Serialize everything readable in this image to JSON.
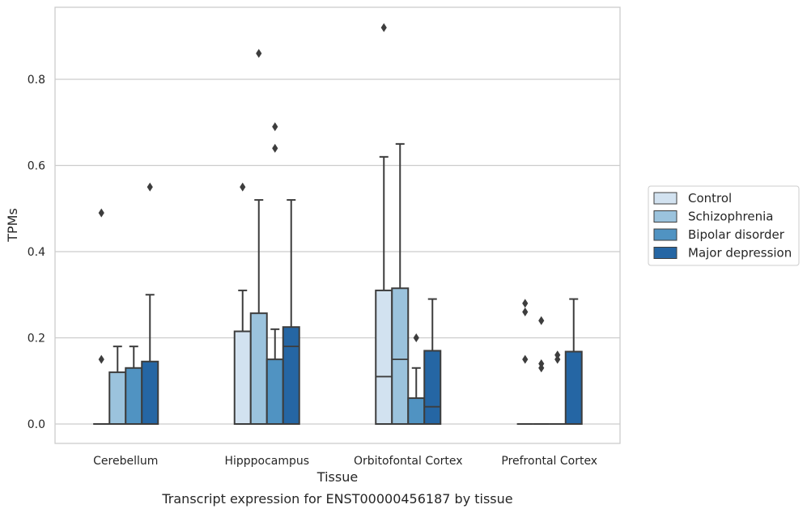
{
  "chart_data": {
    "type": "box",
    "xlabel": "Tissue",
    "ylabel": "TPMs",
    "caption": "Transcript expression for ENST00000456187 by tissue",
    "ylim": [
      -0.045,
      0.97
    ],
    "yticks": [
      0.0,
      0.2,
      0.4,
      0.6,
      0.8
    ],
    "ytick_labels": [
      "0.0",
      "0.2",
      "0.4",
      "0.6",
      "0.8"
    ],
    "grid": "horizontal",
    "legend_position": "right",
    "categories": [
      "Cerebellum",
      "Hipppocampus",
      "Orbitofontal Cortex",
      "Prefrontal Cortex"
    ],
    "series": [
      {
        "name": "Control",
        "color": "#d2e2f0",
        "boxes": [
          {
            "q1": 0,
            "median": 0,
            "q3": 0,
            "whisker_low": 0,
            "whisker_high": 0,
            "outliers": [
              0.15,
              0.49
            ]
          },
          {
            "q1": 0,
            "median": 0,
            "q3": 0.215,
            "whisker_low": 0,
            "whisker_high": 0.31,
            "outliers": [
              0.55
            ]
          },
          {
            "q1": 0,
            "median": 0.11,
            "q3": 0.31,
            "whisker_low": 0,
            "whisker_high": 0.62,
            "outliers": [
              0.92
            ]
          },
          {
            "q1": 0,
            "median": 0,
            "q3": 0,
            "whisker_low": 0,
            "whisker_high": 0,
            "outliers": [
              0.15,
              0.26,
              0.28
            ]
          }
        ]
      },
      {
        "name": "Schizophrenia",
        "color": "#9bc3dd",
        "boxes": [
          {
            "q1": 0,
            "median": 0,
            "q3": 0.12,
            "whisker_low": 0,
            "whisker_high": 0.18,
            "outliers": []
          },
          {
            "q1": 0,
            "median": 0,
            "q3": 0.257,
            "whisker_low": 0,
            "whisker_high": 0.52,
            "outliers": [
              0.86
            ]
          },
          {
            "q1": 0,
            "median": 0.15,
            "q3": 0.315,
            "whisker_low": 0,
            "whisker_high": 0.65,
            "outliers": []
          },
          {
            "q1": 0,
            "median": 0,
            "q3": 0,
            "whisker_low": 0,
            "whisker_high": 0,
            "outliers": [
              0.13,
              0.14,
              0.24
            ]
          }
        ]
      },
      {
        "name": "Bipolar disorder",
        "color": "#5093c2",
        "boxes": [
          {
            "q1": 0,
            "median": 0,
            "q3": 0.13,
            "whisker_low": 0,
            "whisker_high": 0.18,
            "outliers": []
          },
          {
            "q1": 0,
            "median": 0,
            "q3": 0.15,
            "whisker_low": 0,
            "whisker_high": 0.22,
            "outliers": [
              0.64,
              0.69
            ]
          },
          {
            "q1": 0,
            "median": 0,
            "q3": 0.06,
            "whisker_low": 0,
            "whisker_high": 0.13,
            "outliers": [
              0.2
            ]
          },
          {
            "q1": 0,
            "median": 0,
            "q3": 0,
            "whisker_low": 0,
            "whisker_high": 0,
            "outliers": [
              0.15,
              0.16
            ]
          }
        ]
      },
      {
        "name": "Major depression",
        "color": "#2566a4",
        "boxes": [
          {
            "q1": 0,
            "median": 0,
            "q3": 0.145,
            "whisker_low": 0,
            "whisker_high": 0.3,
            "outliers": [
              0.55
            ]
          },
          {
            "q1": 0,
            "median": 0.18,
            "q3": 0.225,
            "whisker_low": 0,
            "whisker_high": 0.52,
            "outliers": []
          },
          {
            "q1": 0,
            "median": 0.04,
            "q3": 0.17,
            "whisker_low": 0,
            "whisker_high": 0.29,
            "outliers": []
          },
          {
            "q1": 0,
            "median": 0,
            "q3": 0.168,
            "whisker_low": 0,
            "whisker_high": 0.29,
            "outliers": []
          }
        ]
      }
    ]
  }
}
